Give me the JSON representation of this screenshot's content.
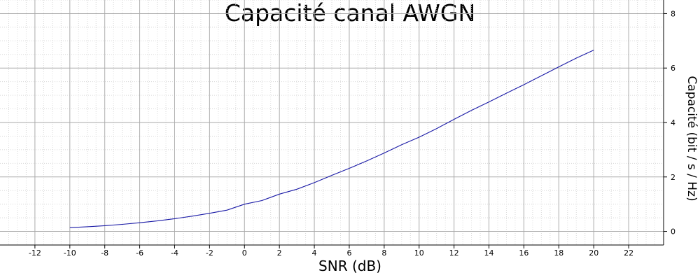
{
  "chart_data": {
    "type": "line",
    "title": "Capacité canal AWGN",
    "xlabel": "SNR (dB)",
    "ylabel": "Capacité (bit / s / Hz)",
    "xlim": [
      -14,
      24
    ],
    "ylim": [
      -0.5,
      8.5
    ],
    "x_ticks": [
      -12,
      -10,
      -8,
      -6,
      -4,
      -2,
      0,
      2,
      4,
      6,
      8,
      10,
      12,
      14,
      16,
      18,
      20,
      22
    ],
    "y_ticks": [
      0,
      2,
      4,
      6,
      8
    ],
    "grid": true,
    "legend": "none",
    "line_color": "#1a1aa6",
    "series": [
      {
        "x": [
          -10,
          -9,
          -8,
          -7,
          -6,
          -5,
          -4,
          -3,
          -2,
          -1,
          0,
          1,
          2,
          3,
          4,
          5,
          6,
          7,
          8,
          9,
          10,
          11,
          12,
          13,
          14,
          15,
          16,
          17,
          18,
          19,
          20
        ],
        "values": [
          0.1375,
          0.1703,
          0.2103,
          0.2586,
          0.3165,
          0.3853,
          0.4659,
          0.5589,
          0.6641,
          0.7809,
          1.0,
          1.1333,
          1.369,
          1.5487,
          1.792,
          2.0574,
          2.3146,
          2.5873,
          2.8791,
          3.1826,
          3.4594,
          3.777,
          4.115,
          4.4486,
          4.7568,
          5.0763,
          5.3893,
          5.7173,
          6.0435,
          6.3664,
          6.6582
        ]
      }
    ]
  }
}
